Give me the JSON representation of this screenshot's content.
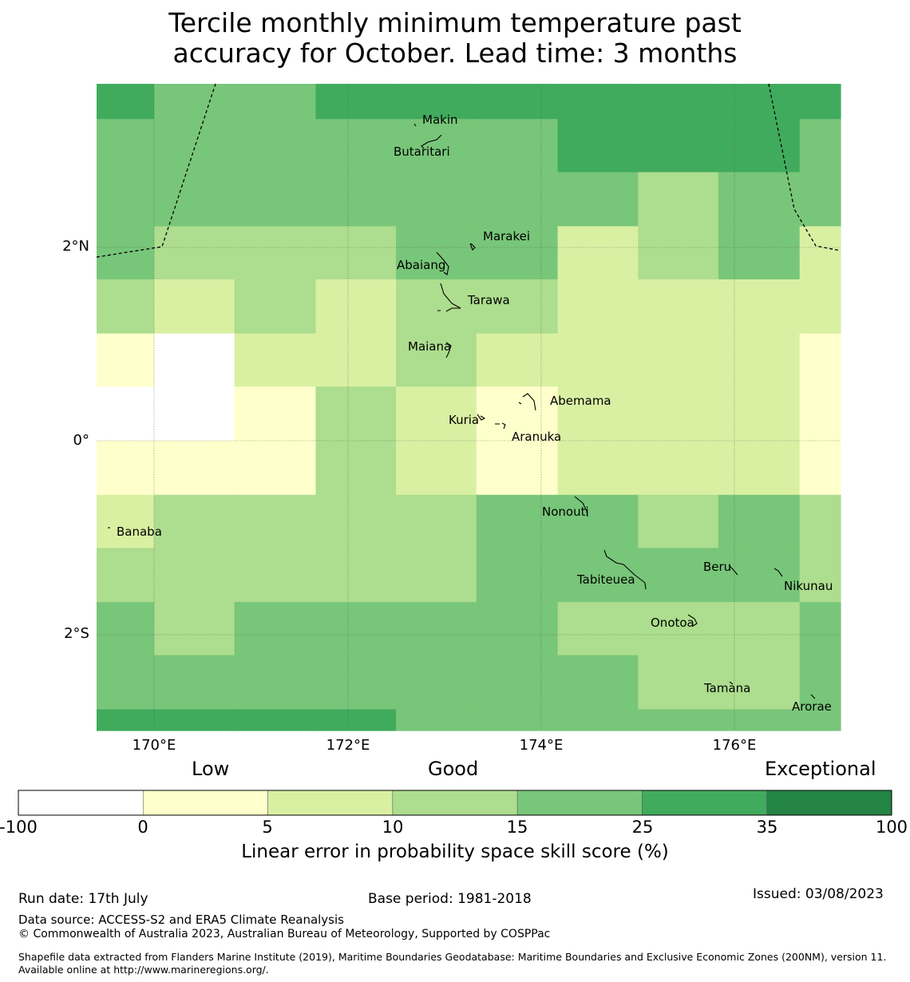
{
  "title_line1": "Tercile monthly minimum temperature past",
  "title_line2": "accuracy for October. Lead time: 3 months",
  "axes": {
    "lat_labels": [
      "2°N",
      "0°",
      "2°S"
    ],
    "lon_labels": [
      "170°E",
      "172°E",
      "174°E",
      "176°E"
    ]
  },
  "islands": {
    "makin": "Makin",
    "butaritari": "Butaritari",
    "marakei": "Marakei",
    "abaiang": "Abaiang",
    "tarawa": "Tarawa",
    "maiana": "Maiana",
    "abemama": "Abemama",
    "kuria": "Kuria",
    "aranuka": "Aranuka",
    "nonouti": "Nonouti",
    "banaba": "Banaba",
    "beru": "Beru",
    "tabiteuea": "Tabiteuea",
    "nikunau": "Nikunau",
    "onotoa": "Onotoa",
    "tamana": "Tamana",
    "arorae": "Arorae"
  },
  "legend": {
    "categories": [
      "Low",
      "Good",
      "Exceptional"
    ],
    "ticks": [
      "-100",
      "0",
      "5",
      "10",
      "15",
      "25",
      "35",
      "100"
    ],
    "colors": [
      "#ffffff",
      "#ffffcc",
      "#d9f0a3",
      "#addd8e",
      "#78c679",
      "#41ab5d",
      "#238443"
    ],
    "label": "Linear error in probability space skill score (%)"
  },
  "footer": {
    "run_date": "Run date: 17th July",
    "base_period": "Base period: 1981-2018",
    "issued": "Issued: 03/08/2023",
    "data_source": "Data source: ACCESS-S2 and ERA5 Climate Reanalysis",
    "copyright": "© Commonwealth of Australia 2023, Australian Bureau of Meteorology, Supported by COSPPac",
    "shapefile": "Shapefile data extracted from Flanders Marine Institute (2019), Maritime Boundaries Geodatabase: Maritime Boundaries and Exclusive Economic Zones (200NM), version 11. Available online at http://www.marineregions.org/."
  },
  "grid": {
    "lon_edges": [
      169.4,
      170.0,
      170.83,
      171.67,
      172.5,
      173.33,
      174.17,
      175.0,
      175.83,
      176.67,
      177.1
    ],
    "lat_edges": [
      3.7,
      3.33,
      2.78,
      2.22,
      1.67,
      1.11,
      0.56,
      0.0,
      -0.56,
      -1.11,
      -1.67,
      -2.22,
      -2.78,
      -3.0
    ],
    "skill_class": [
      [
        5,
        4,
        4,
        5,
        5,
        5,
        5,
        5,
        5,
        5
      ],
      [
        4,
        4,
        4,
        4,
        4,
        4,
        5,
        5,
        5,
        4
      ],
      [
        4,
        4,
        4,
        4,
        4,
        4,
        4,
        3,
        4,
        4
      ],
      [
        4,
        3,
        3,
        3,
        4,
        4,
        2,
        3,
        4,
        2
      ],
      [
        3,
        2,
        3,
        2,
        3,
        3,
        2,
        2,
        2,
        2
      ],
      [
        1,
        0,
        2,
        2,
        3,
        2,
        2,
        2,
        2,
        1
      ],
      [
        0,
        0,
        1,
        3,
        2,
        1,
        2,
        2,
        2,
        1
      ],
      [
        1,
        1,
        1,
        3,
        2,
        1,
        2,
        2,
        2,
        1
      ],
      [
        2,
        3,
        3,
        3,
        3,
        4,
        4,
        3,
        4,
        3
      ],
      [
        3,
        3,
        3,
        3,
        3,
        4,
        4,
        4,
        4,
        3
      ],
      [
        4,
        3,
        4,
        4,
        4,
        4,
        3,
        3,
        3,
        4
      ],
      [
        4,
        4,
        4,
        4,
        4,
        4,
        4,
        3,
        3,
        4
      ],
      [
        5,
        5,
        5,
        5,
        4,
        4,
        4,
        4,
        4,
        4
      ]
    ]
  }
}
